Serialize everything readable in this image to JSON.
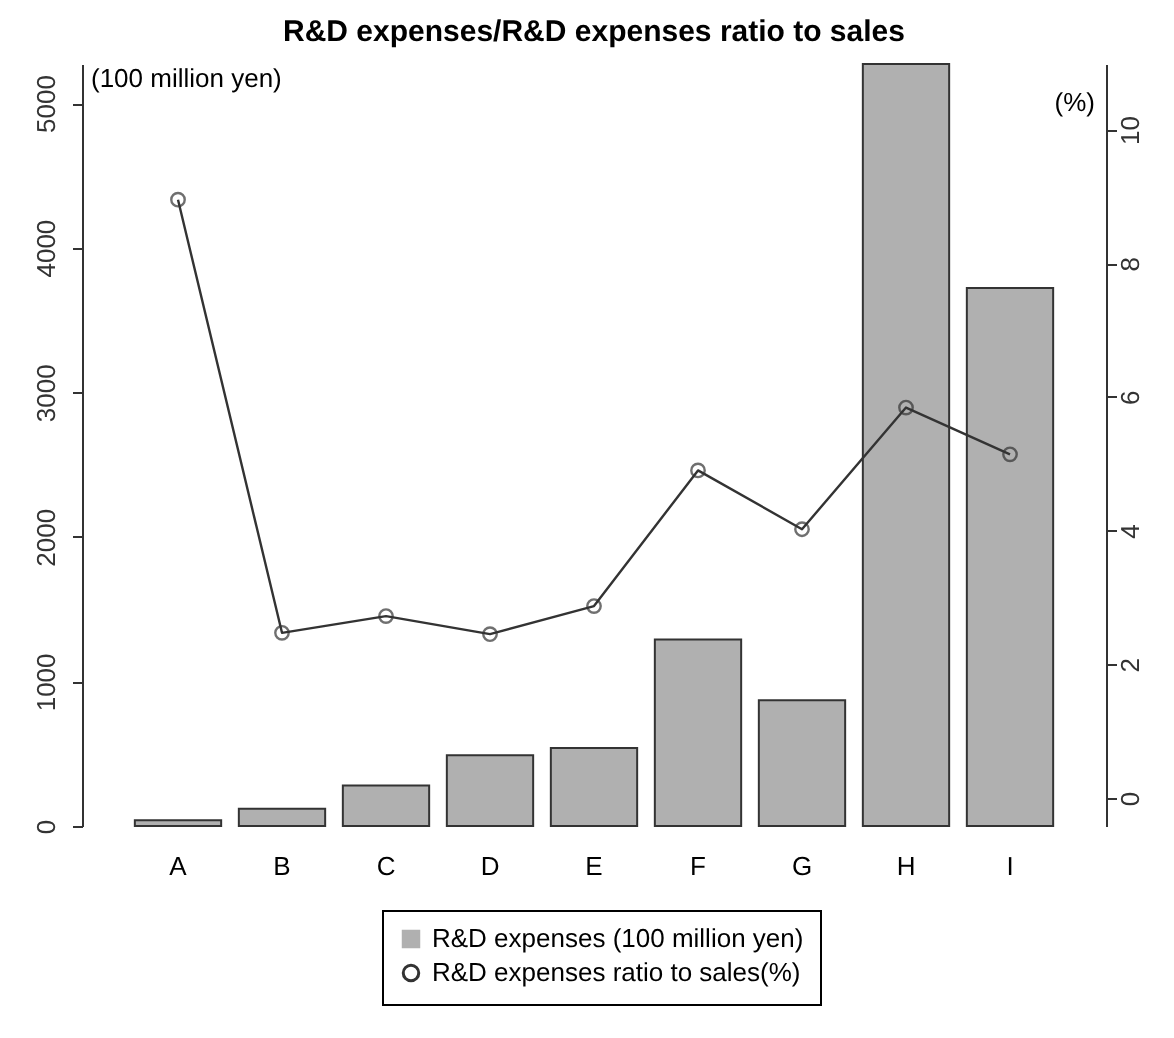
{
  "chart_data": {
    "type": "bar",
    "title": "R&D expenses/R&D expenses ratio to sales",
    "ylabel": "(100 million yen)",
    "y2label": "(%)",
    "categories": [
      "A",
      "B",
      "C",
      "D",
      "E",
      "F",
      "G",
      "H",
      "I"
    ],
    "series": [
      {
        "name": "R&D expenses (100 million yen)",
        "color": "#b0b0b0",
        "values": [
          40,
          120,
          280,
          490,
          540,
          1290,
          870,
          5270,
          3720
        ]
      },
      {
        "name": "R&D expenses ratio to sales(%)",
        "type": "line",
        "axis": "y2",
        "color": "#333333",
        "marker": "circle",
        "values": [
          8.95,
          2.47,
          2.72,
          2.45,
          2.87,
          4.9,
          4.02,
          5.84,
          5.14
        ]
      }
    ],
    "ylim": [
      0,
      5270
    ],
    "yticks": [
      0,
      1000,
      2000,
      3000,
      4000,
      5000
    ],
    "y2lim": [
      -0.42,
      10.98
    ],
    "y2ticks": [
      0,
      2,
      4,
      6,
      8,
      10
    ],
    "grid": false,
    "legend": "bottom"
  }
}
